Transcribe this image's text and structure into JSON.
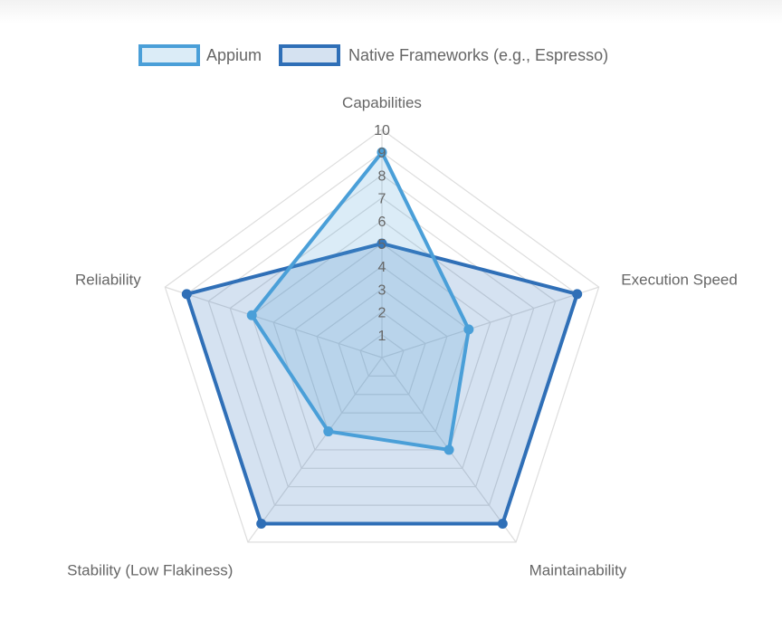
{
  "chart_data": {
    "type": "radar",
    "title": "",
    "categories": [
      "Capabilities",
      "Execution Speed",
      "Maintainability",
      "Stability (Low Flakiness)",
      "Reliability"
    ],
    "series": [
      {
        "name": "Appium",
        "values": [
          9,
          4,
          5,
          4,
          6
        ],
        "color": "#4a9fd8",
        "fill": "rgba(74,159,216,0.20)"
      },
      {
        "name": "Native Frameworks (e.g., Espresso)",
        "values": [
          5,
          9,
          9,
          9,
          9
        ],
        "color": "#2f6fb7",
        "fill": "rgba(47,111,183,0.20)"
      }
    ],
    "rlim": [
      0,
      10
    ],
    "ticks": [
      1,
      2,
      3,
      4,
      5,
      6,
      7,
      8,
      9,
      10
    ],
    "grid": true,
    "legend_position": "top",
    "grid_color": "#dddddd"
  }
}
